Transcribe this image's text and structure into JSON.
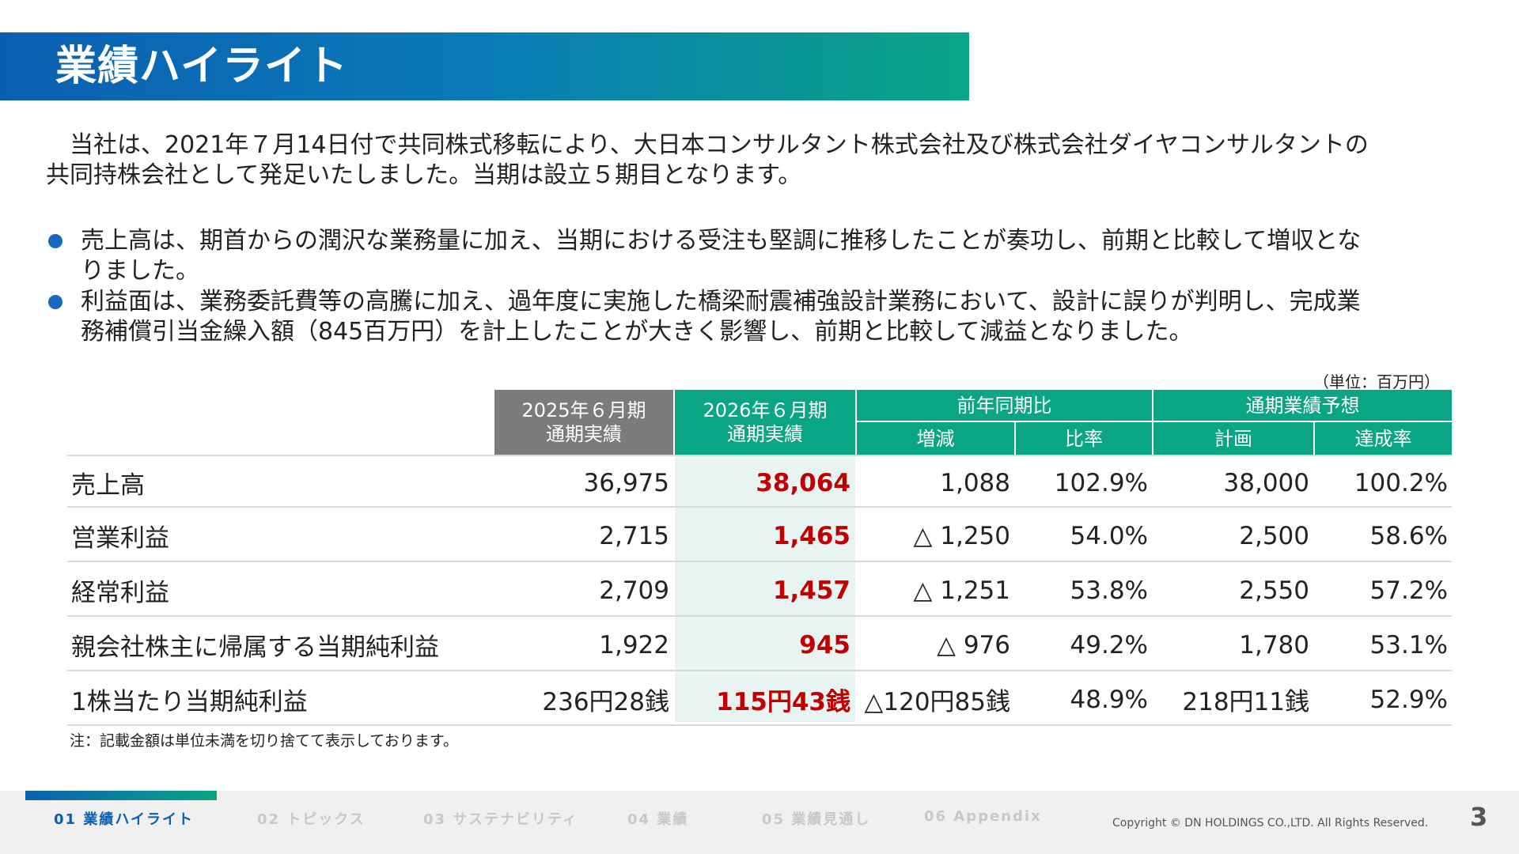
{
  "header": {
    "title": "業績ハイライト"
  },
  "intro": {
    "line1": "当社は、2021年７月14日付で共同株式移転により、大日本コンサルタント株式会社及び株式会社ダイヤコンサルタントの",
    "line2": "共同持株会社として発足いたしました。当期は設立５期目となります。"
  },
  "bullets": [
    {
      "line1": "売上高は、期首からの潤沢な業務量に加え、当期における受注も堅調に推移したことが奏功し、前期と比較して増収とな",
      "line2": "りました。"
    },
    {
      "line1": "利益面は、業務委託費等の高騰に加え、過年度に実施した橋梁耐震補強設計業務において、設計に誤りが判明し、完成業",
      "line2": "務補償引当金繰入額（845百万円）を計上したことが大きく影響し、前期と比較して減益となりました。"
    }
  ],
  "table": {
    "unit": "（単位：百万円）",
    "headers": {
      "prev_line1": "2025年６月期",
      "prev_line2": "通期実績",
      "curr_line1": "2026年６月期",
      "curr_line2": "通期実績",
      "yoy": "前年同期比",
      "change": "増減",
      "ratio": "比率",
      "forecast": "通期業績予想",
      "plan": "計画",
      "achievement": "達成率"
    },
    "rows": [
      {
        "label": "売上高",
        "prev": "36,975",
        "curr": "38,064",
        "change": "1,088",
        "ratio": "102.9%",
        "plan": "38,000",
        "achievement": "100.2%"
      },
      {
        "label": "営業利益",
        "prev": "2,715",
        "curr": "1,465",
        "change": "△ 1,250",
        "ratio": "54.0%",
        "plan": "2,500",
        "achievement": "58.6%"
      },
      {
        "label": "経常利益",
        "prev": "2,709",
        "curr": "1,457",
        "change": "△ 1,251",
        "ratio": "53.8%",
        "plan": "2,550",
        "achievement": "57.2%"
      },
      {
        "label": "親会社株主に帰属する当期純利益",
        "prev": "1,922",
        "curr": "945",
        "change": "△ 976",
        "ratio": "49.2%",
        "plan": "1,780",
        "achievement": "53.1%"
      },
      {
        "label": "1株当たり当期純利益",
        "prev": "236円28銭",
        "curr": "115円43銭",
        "change": "△120円85銭",
        "ratio": "48.9%",
        "plan": "218円11銭",
        "achievement": "52.9%"
      }
    ],
    "note": "注：記載金額は単位未満を切り捨てて表示しております。"
  },
  "footer": {
    "nav": [
      "01 業績ハイライト",
      "02 トピックス",
      "03 サステナビリティ",
      "04 業績",
      "05 業績見通し",
      "06 Appendix"
    ],
    "copyright": "Copyright © DN HOLDINGS CO.,LTD. All Rights Reserved.",
    "page_number": "3"
  },
  "colors": {
    "blue": "#0b5fb0",
    "green": "#0aa585",
    "grey_header": "#7b7b7b",
    "highlight_red": "#c00000",
    "highlight_bg": "#e8f4f1"
  }
}
